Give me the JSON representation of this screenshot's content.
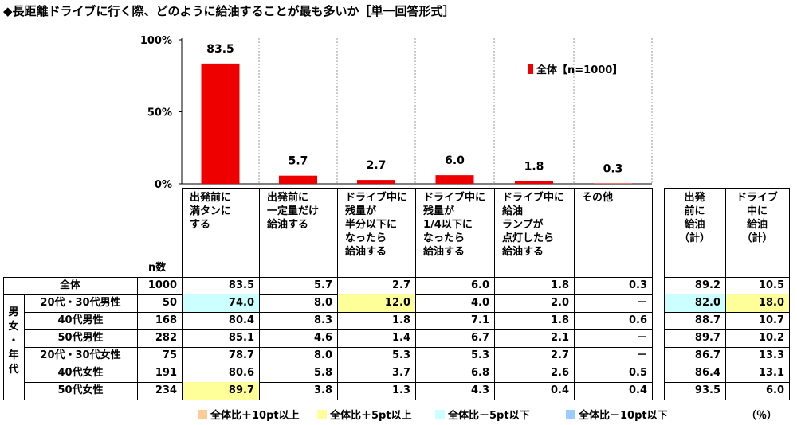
{
  "title": "◆長距離ドライブに行く際、どのように給油することが最も多いか［単一回答形式］",
  "chart_data": {
    "type": "bar",
    "categories": [
      "出発前に満タンにする",
      "出発前に一定量だけ給油する",
      "ドライブ中に残量が半分以下になったら給油する",
      "ドライブ中に残量が1/4以下になったら給油する",
      "ドライブ中に給油ランプが点灯したら給油する",
      "その他"
    ],
    "series": [
      {
        "name": "全体【n=1000】",
        "values": [
          83.5,
          5.7,
          2.7,
          6.0,
          1.8,
          0.3
        ],
        "color": "#ee0000"
      }
    ],
    "yticks": [
      "100%",
      "50%",
      "0%"
    ],
    "ylim": [
      0,
      100
    ],
    "legend_position": "top-right",
    "data_labels": [
      "83.5",
      "5.7",
      "2.7",
      "6.0",
      "1.8",
      "0.3"
    ]
  },
  "table": {
    "n_header": "n数",
    "col_headers": [
      [
        "出発前に",
        "満タンに",
        "する"
      ],
      [
        "出発前に",
        "一定量だけ",
        "給油する"
      ],
      [
        "ドライブ中に",
        "残量が",
        "半分以下に",
        "なったら",
        "給油する"
      ],
      [
        "ドライブ中に",
        "残量が",
        "1/4以下に",
        "なったら",
        "給油する"
      ],
      [
        "ドライブ中に",
        "給油",
        "ランプが",
        "点灯したら",
        "給油する"
      ],
      [
        "その他"
      ]
    ],
    "sum_headers": [
      [
        "出発",
        "前に",
        "給油",
        "（計）"
      ],
      [
        "ドライブ",
        "中に",
        "給油",
        "（計）"
      ]
    ],
    "group_label": "男女・年代",
    "group_label_chars": [
      "男",
      "女",
      "・",
      "年",
      "代"
    ],
    "rows": [
      {
        "label": "全体",
        "n": "1000",
        "values": [
          "83.5",
          "5.7",
          "2.7",
          "6.0",
          "1.8",
          "0.3"
        ],
        "sums": [
          "89.2",
          "10.5"
        ],
        "hl": [
          "",
          "",
          "",
          "",
          "",
          ""
        ],
        "sum_hl": [
          "",
          ""
        ]
      },
      {
        "label": "20代・30代男性",
        "n": "50",
        "values": [
          "74.0",
          "8.0",
          "12.0",
          "4.0",
          "2.0",
          "－"
        ],
        "sums": [
          "82.0",
          "18.0"
        ],
        "hl": [
          "c",
          "",
          "y",
          "",
          "",
          ""
        ],
        "sum_hl": [
          "c",
          "y"
        ]
      },
      {
        "label": "40代男性",
        "n": "168",
        "values": [
          "80.4",
          "8.3",
          "1.8",
          "7.1",
          "1.8",
          "0.6"
        ],
        "sums": [
          "88.7",
          "10.7"
        ],
        "hl": [
          "",
          "",
          "",
          "",
          "",
          ""
        ],
        "sum_hl": [
          "",
          ""
        ]
      },
      {
        "label": "50代男性",
        "n": "282",
        "values": [
          "85.1",
          "4.6",
          "1.4",
          "6.7",
          "2.1",
          "－"
        ],
        "sums": [
          "89.7",
          "10.2"
        ],
        "hl": [
          "",
          "",
          "",
          "",
          "",
          ""
        ],
        "sum_hl": [
          "",
          ""
        ]
      },
      {
        "label": "20代・30代女性",
        "n": "75",
        "values": [
          "78.7",
          "8.0",
          "5.3",
          "5.3",
          "2.7",
          "－"
        ],
        "sums": [
          "86.7",
          "13.3"
        ],
        "hl": [
          "",
          "",
          "",
          "",
          "",
          ""
        ],
        "sum_hl": [
          "",
          ""
        ]
      },
      {
        "label": "40代女性",
        "n": "191",
        "values": [
          "80.6",
          "5.8",
          "3.7",
          "6.8",
          "2.6",
          "0.5"
        ],
        "sums": [
          "86.4",
          "13.1"
        ],
        "hl": [
          "",
          "",
          "",
          "",
          "",
          ""
        ],
        "sum_hl": [
          "",
          ""
        ]
      },
      {
        "label": "50代女性",
        "n": "234",
        "values": [
          "89.7",
          "3.8",
          "1.3",
          "4.3",
          "0.4",
          "0.4"
        ],
        "sums": [
          "93.5",
          "6.0"
        ],
        "hl": [
          "y",
          "",
          "",
          "",
          "",
          ""
        ],
        "sum_hl": [
          "",
          ""
        ]
      }
    ]
  },
  "legend": [
    {
      "label": "全体比＋10pt以上",
      "color": "#ffcc99"
    },
    {
      "label": "全体比＋5pt以上",
      "color": "#ffff99"
    },
    {
      "label": "全体比－5pt以下",
      "color": "#ccffff"
    },
    {
      "label": "全体比－10pt以下",
      "color": "#99ccff"
    }
  ],
  "unit": "（％）"
}
